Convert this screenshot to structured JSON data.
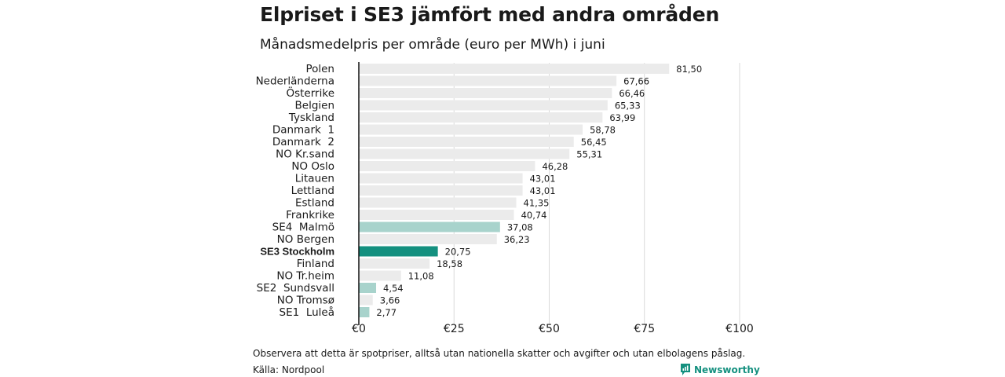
{
  "title": "Elpriset i SE3 jämfört med andra områden",
  "subtitle": "Månadsmedelpris per område (euro per MWh) i juni",
  "footnote": "Observera att detta är spotpriser, alltså utan nationella skatter och avgifter och utan elbolagens påslag.",
  "source": "Källa: Nordpool",
  "brand": {
    "name": "Newsworthy",
    "icon": "newsworthy-logo-icon",
    "color": "#14907f"
  },
  "colors": {
    "default": "#ebebeb",
    "se_other": "#a8d3cc",
    "se3": "#14907f"
  },
  "chart_data": {
    "type": "bar",
    "orientation": "horizontal",
    "categories": [
      "Polen",
      "Nederländerna",
      "Österrike",
      "Belgien",
      "Tyskland",
      "Danmark  1",
      "Danmark  2",
      "NO Kr.sand",
      "NO Oslo",
      "Litauen",
      "Lettland",
      "Estland",
      "Frankrike",
      "SE4  Malmö",
      "NO Bergen",
      "SE3 Stockholm",
      "Finland",
      "NO Tr.heim",
      "SE2  Sundsvall",
      "NO Tromsø",
      "SE1  Luleå"
    ],
    "values": [
      81.5,
      67.66,
      66.46,
      65.33,
      63.99,
      58.78,
      56.45,
      55.31,
      46.28,
      43.01,
      43.01,
      41.35,
      40.74,
      37.08,
      36.23,
      20.75,
      18.58,
      11.08,
      4.54,
      3.66,
      2.77
    ],
    "value_labels": [
      "81,50",
      "67,66",
      "66,46",
      "65,33",
      "63,99",
      "58,78",
      "56,45",
      "55,31",
      "46,28",
      "43,01",
      "43,01",
      "41,35",
      "40,74",
      "37,08",
      "36,23",
      "20,75",
      "18,58",
      "11,08",
      "4,54",
      "3,66",
      "2,77"
    ],
    "highlight": [
      "default",
      "default",
      "default",
      "default",
      "default",
      "default",
      "default",
      "default",
      "default",
      "default",
      "default",
      "default",
      "default",
      "se_other",
      "default",
      "se3",
      "default",
      "default",
      "se_other",
      "default",
      "se_other"
    ],
    "bold_category": "SE3 Stockholm",
    "xlim": [
      0,
      100
    ],
    "xticks": [
      0,
      25,
      50,
      75,
      100
    ],
    "xtick_labels": [
      "€0",
      "€25",
      "€50",
      "€75",
      "€100"
    ],
    "grid": true
  }
}
